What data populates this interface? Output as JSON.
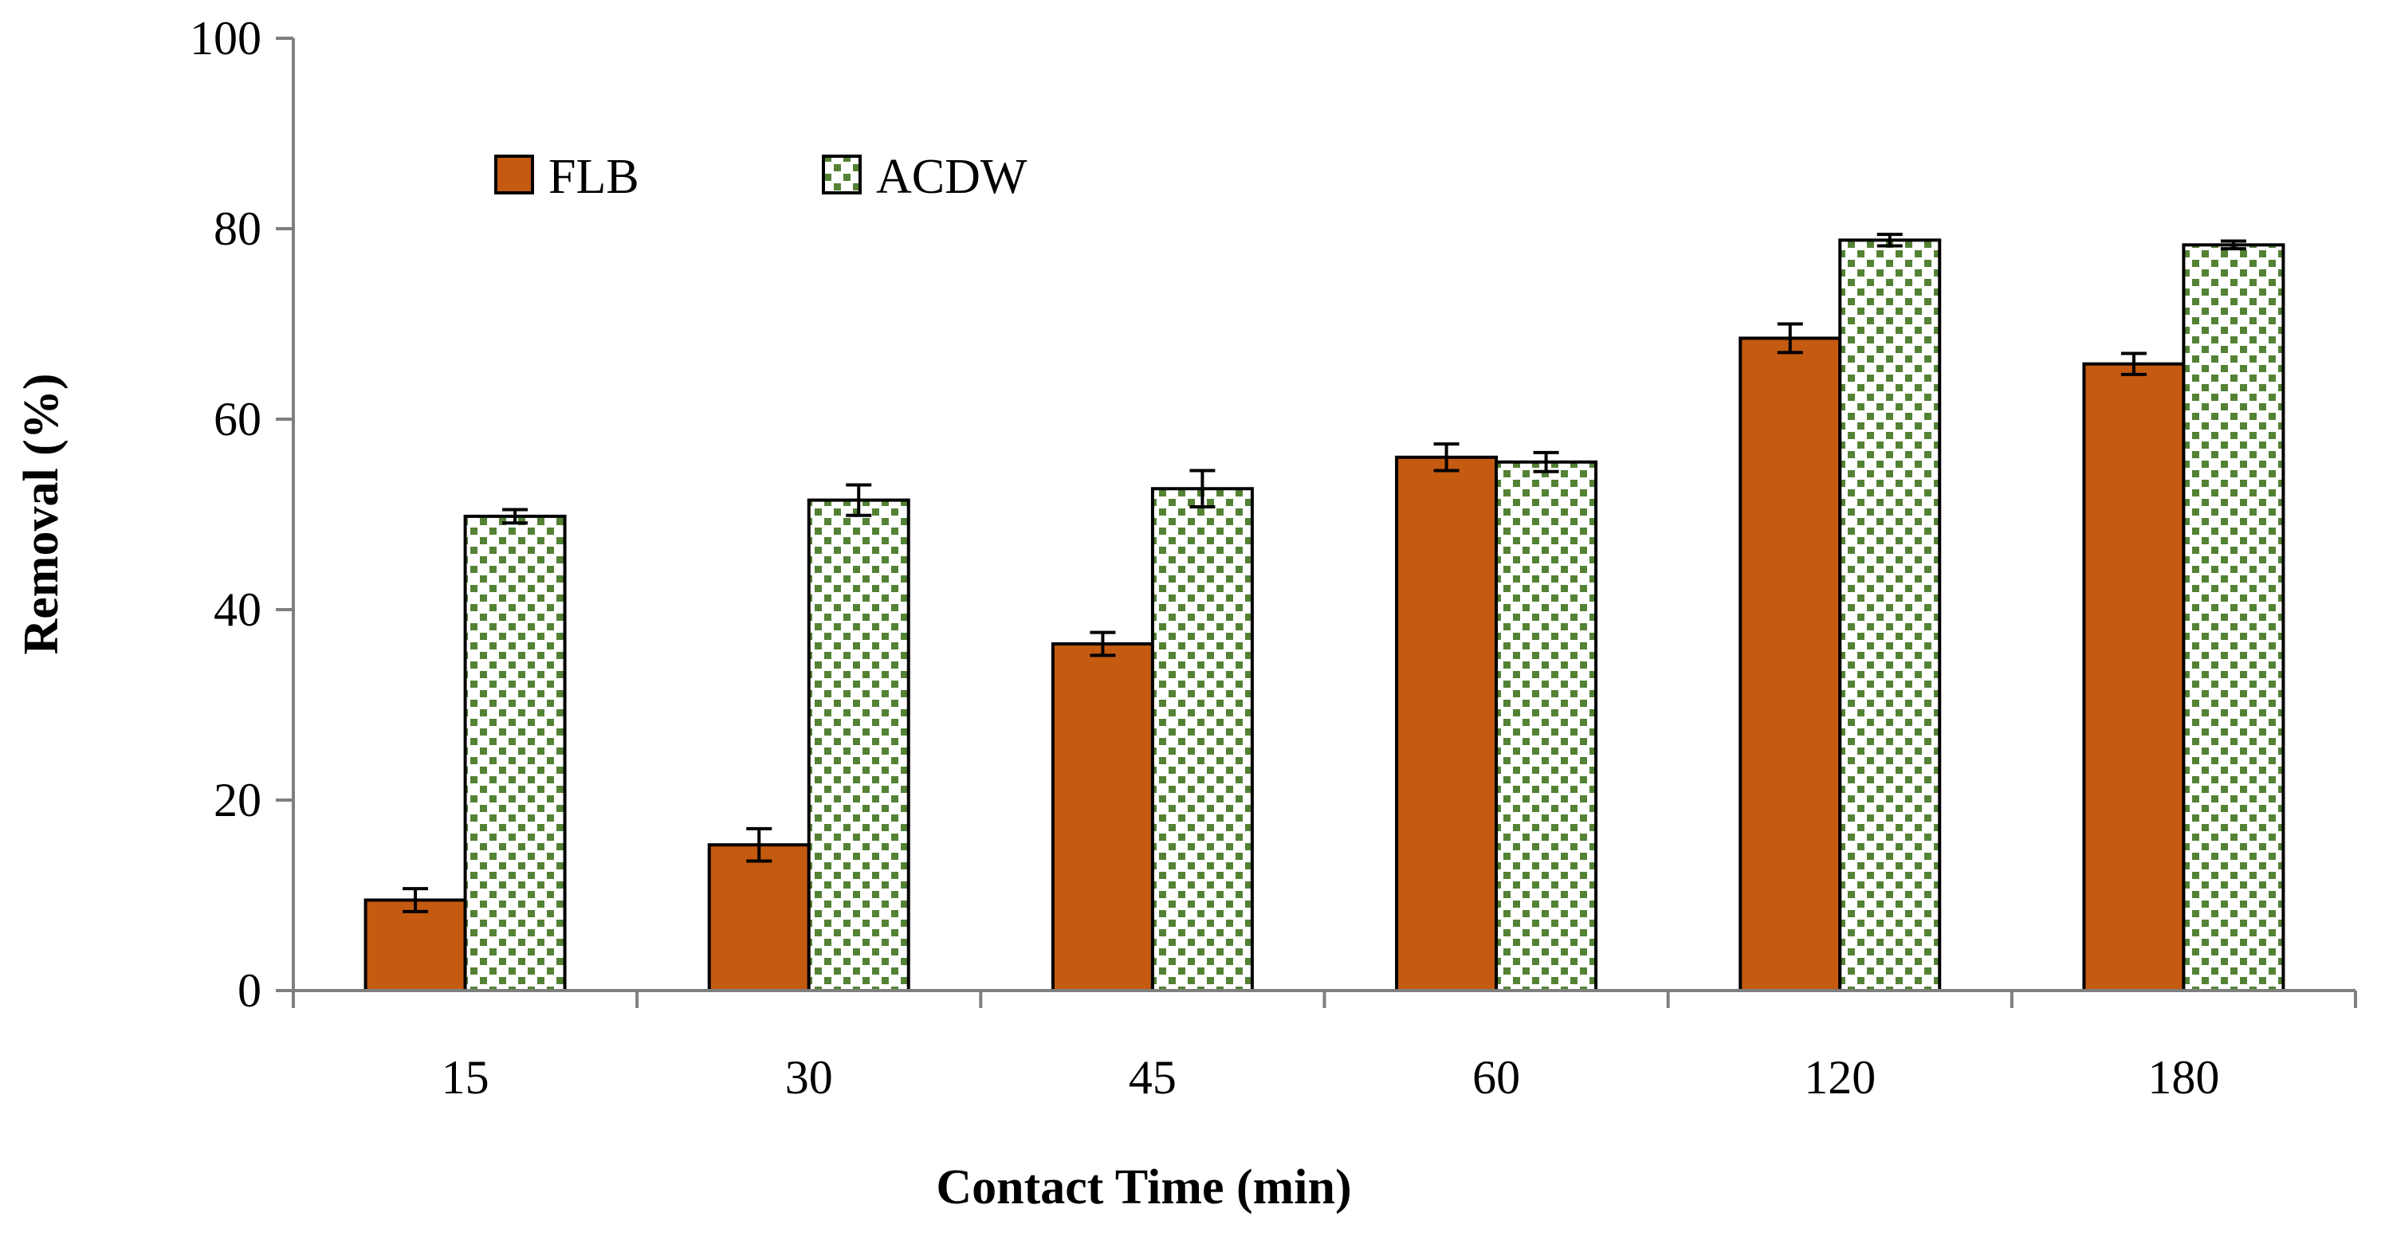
{
  "chart_data": {
    "type": "bar",
    "title": "",
    "xlabel": "Contact Time (min)",
    "ylabel": "Removal (%)",
    "categories": [
      "15",
      "30",
      "45",
      "60",
      "120",
      "180"
    ],
    "ylim": [
      0,
      100
    ],
    "yticks": [
      "0",
      "20",
      "40",
      "60",
      "80",
      "100"
    ],
    "grid": false,
    "legend_position": "top-left",
    "series": [
      {
        "name": "FLB",
        "color": "#c55a11",
        "pattern": "solid",
        "values": [
          9.5,
          15.3,
          36.4,
          56.0,
          68.5,
          65.8
        ],
        "errors": [
          1.2,
          1.7,
          1.2,
          1.4,
          1.5,
          1.1
        ]
      },
      {
        "name": "ACDW",
        "color": "#548235",
        "pattern": "checker",
        "values": [
          49.8,
          51.5,
          52.7,
          55.5,
          78.8,
          78.3
        ],
        "errors": [
          0.7,
          1.6,
          1.9,
          1.0,
          0.6,
          0.4
        ]
      }
    ]
  }
}
